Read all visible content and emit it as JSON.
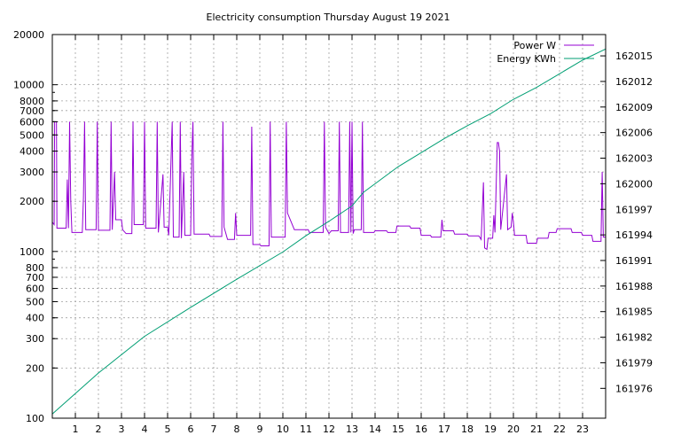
{
  "chart_data": {
    "type": "line",
    "title": "Electricity consumption Thursday August 19 2021",
    "xlabel": "",
    "ylabel": "",
    "xlim": [
      0,
      24
    ],
    "x_ticks": [
      1,
      2,
      3,
      4,
      5,
      6,
      7,
      8,
      9,
      10,
      11,
      12,
      13,
      14,
      15,
      16,
      17,
      18,
      19,
      20,
      21,
      22,
      23
    ],
    "y_left": {
      "scale": "log",
      "ylim": [
        100,
        20000
      ],
      "ticks": [
        100,
        200,
        300,
        400,
        500,
        600,
        700,
        800,
        1000,
        2000,
        3000,
        4000,
        5000,
        6000,
        7000,
        8000,
        10000,
        20000
      ]
    },
    "y_right": {
      "scale": "linear",
      "ylim": [
        161972.5,
        162017.5
      ],
      "ticks": [
        161976,
        161979,
        161982,
        161985,
        161988,
        161991,
        161994,
        161997,
        162000,
        162003,
        162006,
        162009,
        162012,
        162015
      ]
    },
    "grid": true,
    "legend": "top-right",
    "series": [
      {
        "name": "Power W",
        "axis": "left",
        "color": "#9400d3",
        "points": [
          [
            0.0,
            1500
          ],
          [
            0.08,
            1450
          ],
          [
            0.1,
            6000
          ],
          [
            0.18,
            6000
          ],
          [
            0.2,
            1380
          ],
          [
            0.6,
            1380
          ],
          [
            0.65,
            2700
          ],
          [
            0.7,
            1380
          ],
          [
            0.75,
            6000
          ],
          [
            0.8,
            2000
          ],
          [
            0.85,
            1300
          ],
          [
            1.3,
            1300
          ],
          [
            1.35,
            2100
          ],
          [
            1.4,
            6000
          ],
          [
            1.45,
            1350
          ],
          [
            1.9,
            1350
          ],
          [
            1.95,
            6000
          ],
          [
            2.0,
            1340
          ],
          [
            2.5,
            1340
          ],
          [
            2.55,
            6000
          ],
          [
            2.6,
            1350
          ],
          [
            2.7,
            3000
          ],
          [
            2.75,
            1550
          ],
          [
            3.0,
            1550
          ],
          [
            3.05,
            1350
          ],
          [
            3.2,
            1280
          ],
          [
            3.45,
            1280
          ],
          [
            3.5,
            6000
          ],
          [
            3.55,
            1450
          ],
          [
            3.95,
            1450
          ],
          [
            4.0,
            6000
          ],
          [
            4.05,
            1380
          ],
          [
            4.5,
            1380
          ],
          [
            4.55,
            6000
          ],
          [
            4.6,
            1300
          ],
          [
            4.8,
            2900
          ],
          [
            4.85,
            1400
          ],
          [
            5.0,
            1400
          ],
          [
            5.05,
            1250
          ],
          [
            5.2,
            6000
          ],
          [
            5.25,
            1220
          ],
          [
            5.5,
            1220
          ],
          [
            5.55,
            6000
          ],
          [
            5.6,
            1200
          ],
          [
            5.7,
            3000
          ],
          [
            5.75,
            1250
          ],
          [
            6.0,
            1250
          ],
          [
            6.05,
            3600
          ],
          [
            6.1,
            6000
          ],
          [
            6.15,
            1270
          ],
          [
            6.8,
            1270
          ],
          [
            6.85,
            1230
          ],
          [
            7.35,
            1230
          ],
          [
            7.4,
            6000
          ],
          [
            7.45,
            1400
          ],
          [
            7.6,
            1180
          ],
          [
            7.9,
            1180
          ],
          [
            7.95,
            1700
          ],
          [
            8.0,
            1250
          ],
          [
            8.6,
            1250
          ],
          [
            8.65,
            5600
          ],
          [
            8.7,
            1100
          ],
          [
            9.0,
            1100
          ],
          [
            9.05,
            1080
          ],
          [
            9.4,
            1080
          ],
          [
            9.45,
            6000
          ],
          [
            9.5,
            1220
          ],
          [
            10.1,
            1220
          ],
          [
            10.15,
            6000
          ],
          [
            10.2,
            1700
          ],
          [
            10.5,
            1350
          ],
          [
            11.1,
            1350
          ],
          [
            11.15,
            1300
          ],
          [
            11.75,
            1300
          ],
          [
            11.8,
            6000
          ],
          [
            11.85,
            1400
          ],
          [
            12.0,
            1280
          ],
          [
            12.1,
            1330
          ],
          [
            12.4,
            1330
          ],
          [
            12.45,
            6000
          ],
          [
            12.5,
            1300
          ],
          [
            12.85,
            1300
          ],
          [
            12.9,
            6000
          ],
          [
            12.95,
            1300
          ],
          [
            13.0,
            6000
          ],
          [
            13.05,
            1280
          ],
          [
            13.1,
            1350
          ],
          [
            13.4,
            1350
          ],
          [
            13.45,
            6000
          ],
          [
            13.5,
            1300
          ],
          [
            13.95,
            1300
          ],
          [
            14.0,
            1330
          ],
          [
            14.5,
            1330
          ],
          [
            14.55,
            1300
          ],
          [
            14.9,
            1300
          ],
          [
            14.95,
            1420
          ],
          [
            15.5,
            1420
          ],
          [
            15.55,
            1380
          ],
          [
            15.95,
            1380
          ],
          [
            16.0,
            1250
          ],
          [
            16.4,
            1250
          ],
          [
            16.45,
            1220
          ],
          [
            16.85,
            1220
          ],
          [
            16.9,
            1550
          ],
          [
            16.95,
            1330
          ],
          [
            17.4,
            1330
          ],
          [
            17.45,
            1270
          ],
          [
            18.0,
            1270
          ],
          [
            18.05,
            1240
          ],
          [
            18.5,
            1240
          ],
          [
            18.6,
            1180
          ],
          [
            18.7,
            2600
          ],
          [
            18.75,
            1050
          ],
          [
            18.85,
            1030
          ],
          [
            18.9,
            1200
          ],
          [
            19.1,
            1200
          ],
          [
            19.15,
            1650
          ],
          [
            19.2,
            1300
          ],
          [
            19.3,
            4500
          ],
          [
            19.35,
            4500
          ],
          [
            19.4,
            4000
          ],
          [
            19.45,
            1350
          ],
          [
            19.7,
            2900
          ],
          [
            19.75,
            1350
          ],
          [
            19.9,
            1400
          ],
          [
            19.95,
            1700
          ],
          [
            20.0,
            1500
          ],
          [
            20.05,
            1250
          ],
          [
            20.55,
            1250
          ],
          [
            20.6,
            1120
          ],
          [
            21.0,
            1120
          ],
          [
            21.05,
            1200
          ],
          [
            21.5,
            1200
          ],
          [
            21.55,
            1300
          ],
          [
            21.85,
            1300
          ],
          [
            21.9,
            1370
          ],
          [
            22.5,
            1370
          ],
          [
            22.55,
            1300
          ],
          [
            22.95,
            1300
          ],
          [
            23.0,
            1250
          ],
          [
            23.4,
            1250
          ],
          [
            23.45,
            1150
          ],
          [
            23.8,
            1150
          ],
          [
            23.85,
            3000
          ],
          [
            23.9,
            1220
          ],
          [
            24.0,
            1220
          ]
        ]
      },
      {
        "name": "Energy KWh",
        "axis": "right",
        "color": "#009e73",
        "points": [
          [
            0.0,
            161973.0
          ],
          [
            2.0,
            161977.8
          ],
          [
            4.0,
            161982.1
          ],
          [
            6.0,
            161985.5
          ],
          [
            8.0,
            161988.8
          ],
          [
            10.0,
            161992.0
          ],
          [
            11.0,
            161993.9
          ],
          [
            12.0,
            161995.6
          ],
          [
            13.0,
            161997.4
          ],
          [
            13.5,
            161999.0
          ],
          [
            14.0,
            162000.0
          ],
          [
            15.0,
            162002.0
          ],
          [
            17.0,
            162005.3
          ],
          [
            18.0,
            162006.8
          ],
          [
            19.0,
            162008.2
          ],
          [
            20.0,
            162009.9
          ],
          [
            21.0,
            162011.3
          ],
          [
            22.0,
            162012.9
          ],
          [
            23.0,
            162014.5
          ],
          [
            24.0,
            162015.8
          ]
        ]
      }
    ]
  }
}
